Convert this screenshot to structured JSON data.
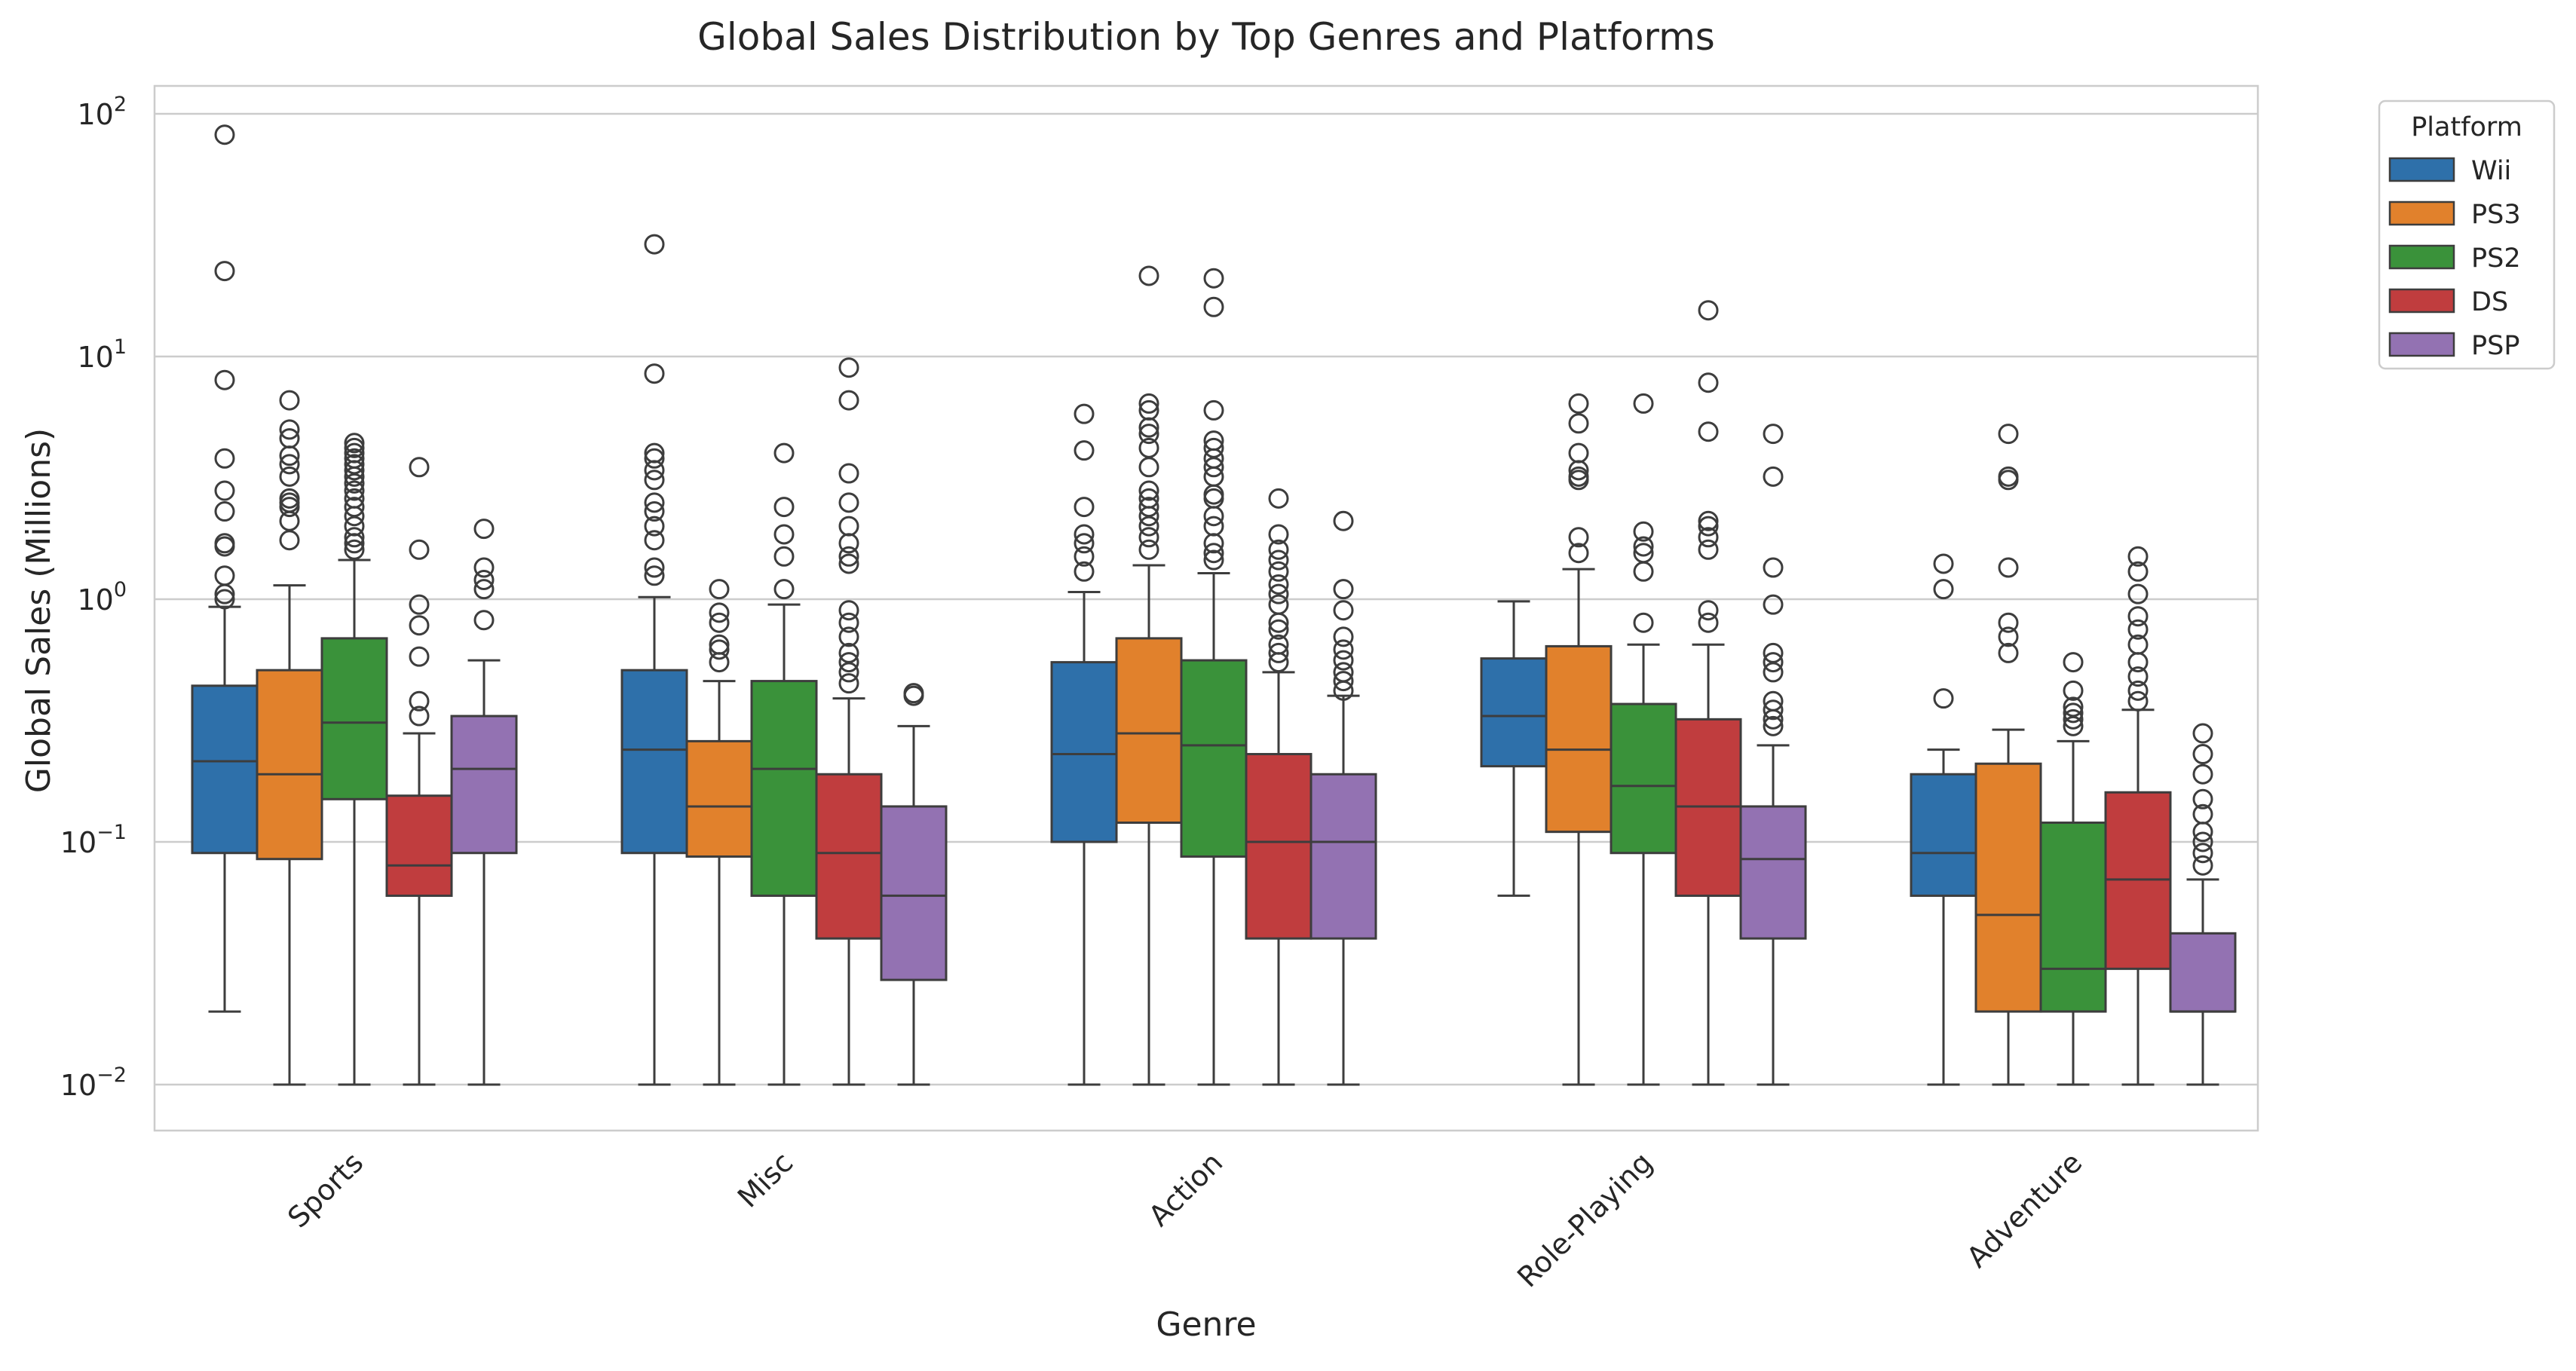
{
  "chart_data": {
    "type": "box",
    "title": "Global Sales Distribution by Top Genres and Platforms",
    "xlabel": "Genre",
    "ylabel": "Global Sales (Millions)",
    "yscale": "log",
    "ylim": [
      0.006,
      130
    ],
    "y_ticks": [
      {
        "value": 0.01,
        "base": "10",
        "exp": "−2"
      },
      {
        "value": 0.1,
        "base": "10",
        "exp": "−1"
      },
      {
        "value": 1,
        "base": "10",
        "exp": "0"
      },
      {
        "value": 10,
        "base": "10",
        "exp": "1"
      },
      {
        "value": 100,
        "base": "10",
        "exp": "2"
      }
    ],
    "grid": true,
    "legend": {
      "title": "Platform",
      "position": "outside-top-right"
    },
    "categories": [
      "Sports",
      "Misc",
      "Action",
      "Role-Playing",
      "Adventure"
    ],
    "series": [
      {
        "name": "Wii",
        "color": "#2e70aa",
        "boxes": [
          {
            "whislo": 0.02,
            "q1": 0.09,
            "med": 0.215,
            "q3": 0.44,
            "whishi": 0.93,
            "fliers": [
              1.0,
              1.05,
              1.25,
              1.65,
              1.7,
              2.3,
              2.8,
              3.8,
              8.0,
              22.5,
              82.0
            ]
          },
          {
            "whislo": 0.01,
            "q1": 0.09,
            "med": 0.24,
            "q3": 0.51,
            "whishi": 1.02,
            "fliers": [
              1.25,
              1.35,
              1.75,
              2.0,
              2.3,
              2.5,
              3.1,
              3.4,
              3.8,
              4.0,
              8.5,
              29.0
            ]
          },
          {
            "whislo": 0.01,
            "q1": 0.1,
            "med": 0.23,
            "q3": 0.55,
            "whishi": 1.07,
            "fliers": [
              1.3,
              1.5,
              1.7,
              1.85,
              2.4,
              4.1,
              5.8
            ]
          },
          {
            "whislo": 0.06,
            "q1": 0.205,
            "med": 0.33,
            "q3": 0.57,
            "whishi": 0.98,
            "fliers": []
          },
          {
            "whislo": 0.01,
            "q1": 0.06,
            "med": 0.09,
            "q3": 0.19,
            "whishi": 0.24,
            "fliers": [
              0.39,
              1.1,
              1.4
            ]
          }
        ]
      },
      {
        "name": "PS3",
        "color": "#e1812c",
        "boxes": [
          {
            "whislo": 0.01,
            "q1": 0.085,
            "med": 0.19,
            "q3": 0.51,
            "whishi": 1.14,
            "fliers": [
              1.75,
              2.1,
              2.4,
              2.5,
              2.6,
              3.2,
              3.6,
              3.9,
              4.6,
              5.0,
              6.6
            ]
          },
          {
            "whislo": 0.01,
            "q1": 0.087,
            "med": 0.14,
            "q3": 0.26,
            "whishi": 0.46,
            "fliers": [
              0.55,
              0.62,
              0.65,
              0.8,
              0.88,
              1.1
            ]
          },
          {
            "whislo": 0.01,
            "q1": 0.12,
            "med": 0.28,
            "q3": 0.69,
            "whishi": 1.38,
            "fliers": [
              1.6,
              1.8,
              2.0,
              2.2,
              2.4,
              2.6,
              2.8,
              3.5,
              4.2,
              4.8,
              5.1,
              6.0,
              6.4,
              21.5
            ]
          },
          {
            "whislo": 0.01,
            "q1": 0.11,
            "med": 0.24,
            "q3": 0.64,
            "whishi": 1.33,
            "fliers": [
              1.55,
              1.8,
              3.1,
              3.2,
              3.4,
              4.0,
              5.3,
              6.4
            ]
          },
          {
            "whislo": 0.01,
            "q1": 0.02,
            "med": 0.05,
            "q3": 0.21,
            "whishi": 0.29,
            "fliers": [
              0.6,
              0.7,
              0.8,
              1.35,
              3.1,
              3.2,
              4.8
            ]
          }
        ]
      },
      {
        "name": "PS2",
        "color": "#3a923a",
        "boxes": [
          {
            "whislo": 0.01,
            "q1": 0.15,
            "med": 0.31,
            "q3": 0.69,
            "whishi": 1.45,
            "fliers": [
              1.6,
              1.7,
              1.8,
              2.0,
              2.2,
              2.4,
              2.6,
              2.8,
              3.0,
              3.2,
              3.4,
              3.6,
              3.8,
              4.0,
              4.2,
              4.4
            ]
          },
          {
            "whislo": 0.01,
            "q1": 0.06,
            "med": 0.2,
            "q3": 0.46,
            "whishi": 0.95,
            "fliers": [
              1.1,
              1.5,
              1.85,
              2.4,
              4.0
            ]
          },
          {
            "whislo": 0.01,
            "q1": 0.087,
            "med": 0.25,
            "q3": 0.56,
            "whishi": 1.28,
            "fliers": [
              1.45,
              1.55,
              1.7,
              2.0,
              2.2,
              2.6,
              2.7,
              3.2,
              3.5,
              3.8,
              4.2,
              4.5,
              6.0,
              16.0,
              21.0
            ]
          },
          {
            "whislo": 0.01,
            "q1": 0.09,
            "med": 0.17,
            "q3": 0.37,
            "whishi": 0.65,
            "fliers": [
              0.8,
              1.3,
              1.55,
              1.65,
              1.9,
              6.4
            ]
          },
          {
            "whislo": 0.01,
            "q1": 0.02,
            "med": 0.03,
            "q3": 0.12,
            "whishi": 0.26,
            "fliers": [
              0.3,
              0.32,
              0.34,
              0.36,
              0.42,
              0.55
            ]
          }
        ]
      },
      {
        "name": "DS",
        "color": "#c03d3e",
        "boxes": [
          {
            "whislo": 0.01,
            "q1": 0.06,
            "med": 0.08,
            "q3": 0.155,
            "whishi": 0.28,
            "fliers": [
              0.33,
              0.38,
              0.58,
              0.78,
              0.95,
              1.6,
              3.5
            ]
          },
          {
            "whislo": 0.01,
            "q1": 0.04,
            "med": 0.09,
            "q3": 0.19,
            "whishi": 0.39,
            "fliers": [
              0.45,
              0.5,
              0.55,
              0.6,
              0.7,
              0.8,
              0.9,
              1.4,
              1.5,
              1.7,
              2.0,
              2.5,
              3.3,
              6.6,
              9.0
            ]
          },
          {
            "whislo": 0.01,
            "q1": 0.04,
            "med": 0.1,
            "q3": 0.23,
            "whishi": 0.5,
            "fliers": [
              0.55,
              0.6,
              0.65,
              0.75,
              0.8,
              0.95,
              1.05,
              1.15,
              1.3,
              1.45,
              1.6,
              1.85,
              2.6
            ]
          },
          {
            "whislo": 0.01,
            "q1": 0.06,
            "med": 0.14,
            "q3": 0.32,
            "whishi": 0.65,
            "fliers": [
              0.8,
              0.9,
              1.6,
              1.8,
              2.0,
              2.1,
              4.9,
              7.8,
              15.5
            ]
          },
          {
            "whislo": 0.01,
            "q1": 0.03,
            "med": 0.07,
            "q3": 0.16,
            "whishi": 0.35,
            "fliers": [
              0.38,
              0.42,
              0.48,
              0.55,
              0.65,
              0.75,
              0.85,
              1.05,
              1.3,
              1.5
            ]
          }
        ]
      },
      {
        "name": "PSP",
        "color": "#9372b2",
        "boxes": [
          {
            "whislo": 0.01,
            "q1": 0.09,
            "med": 0.2,
            "q3": 0.33,
            "whishi": 0.56,
            "fliers": [
              0.82,
              1.1,
              1.2,
              1.35,
              1.95
            ]
          },
          {
            "whislo": 0.01,
            "q1": 0.027,
            "med": 0.06,
            "q3": 0.14,
            "whishi": 0.3,
            "fliers": [
              0.4,
              0.41
            ]
          },
          {
            "whislo": 0.01,
            "q1": 0.04,
            "med": 0.1,
            "q3": 0.19,
            "whishi": 0.4,
            "fliers": [
              0.42,
              0.46,
              0.5,
              0.56,
              0.62,
              0.7,
              0.9,
              1.1,
              2.1
            ]
          },
          {
            "whislo": 0.01,
            "q1": 0.04,
            "med": 0.085,
            "q3": 0.14,
            "whishi": 0.25,
            "fliers": [
              0.3,
              0.32,
              0.35,
              0.38,
              0.5,
              0.55,
              0.6,
              0.95,
              1.35,
              3.2,
              4.8
            ]
          },
          {
            "whislo": 0.01,
            "q1": 0.02,
            "med": 0.02,
            "q3": 0.042,
            "whishi": 0.07,
            "fliers": [
              0.08,
              0.09,
              0.1,
              0.11,
              0.13,
              0.15,
              0.19,
              0.23,
              0.28
            ]
          }
        ]
      }
    ]
  }
}
